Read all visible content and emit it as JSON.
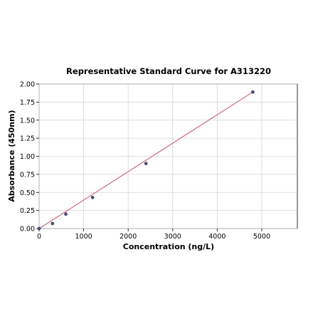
{
  "chart_data": {
    "type": "scatter",
    "title": "Representative Standard Curve for A313220",
    "xlabel": "Concentration (ng/L)",
    "ylabel": "Absorbance (450nm)",
    "xlim": [
      0,
      5800
    ],
    "ylim": [
      0,
      2.0
    ],
    "x_ticks": [
      "0",
      "1000",
      "2000",
      "3000",
      "4000",
      "5000"
    ],
    "x_tick_values": [
      0,
      1000,
      2000,
      3000,
      4000,
      5000
    ],
    "y_ticks": [
      "0.00",
      "0.25",
      "0.50",
      "0.75",
      "1.00",
      "1.25",
      "1.50",
      "1.75",
      "2.00"
    ],
    "y_tick_values": [
      0,
      0.25,
      0.5,
      0.75,
      1.0,
      1.25,
      1.5,
      1.75,
      2.0
    ],
    "grid": true,
    "series": [
      {
        "points": [
          {
            "x": 0,
            "y": 0.0
          },
          {
            "x": 300,
            "y": 0.07
          },
          {
            "x": 600,
            "y": 0.2
          },
          {
            "x": 1200,
            "y": 0.43
          },
          {
            "x": 2400,
            "y": 0.9
          },
          {
            "x": 4800,
            "y": 1.89
          }
        ],
        "color": "#4a4a7a"
      }
    ],
    "fit_line": {
      "x": [
        0,
        4800
      ],
      "y": [
        0.0,
        1.89
      ],
      "color": "#c8607a"
    }
  }
}
